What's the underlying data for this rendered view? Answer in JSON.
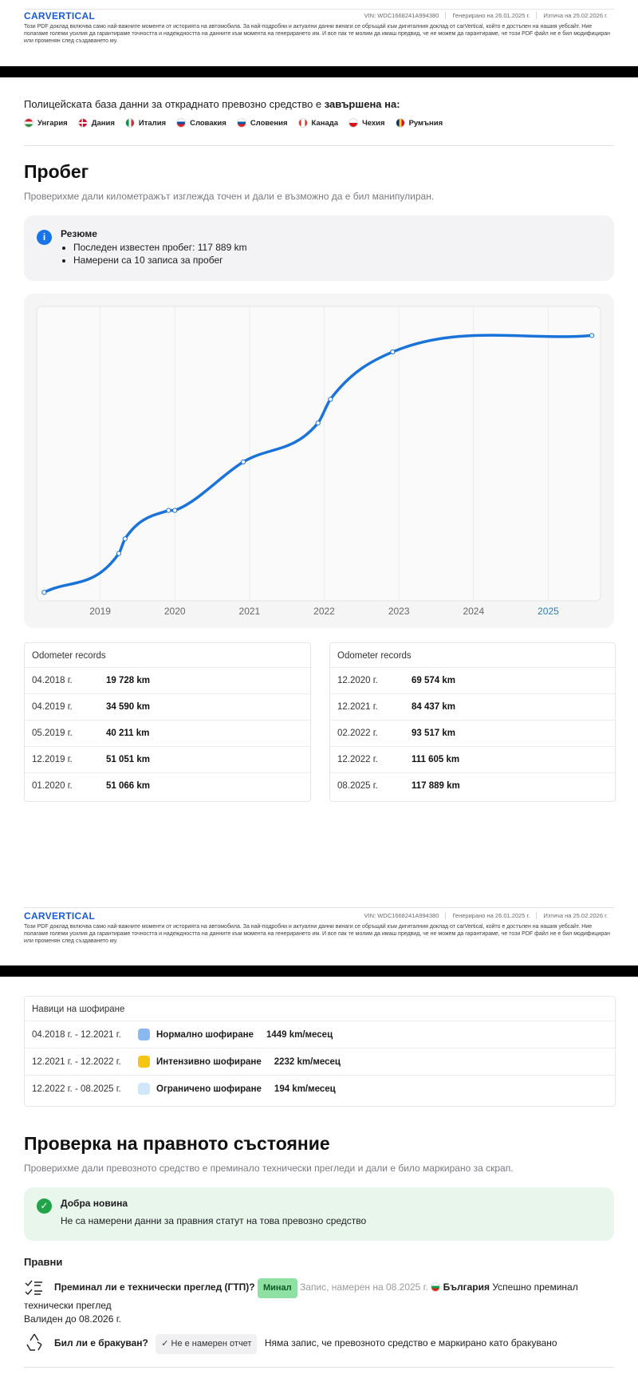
{
  "footer": {
    "logo": "CARVERTICAL",
    "vin": "VIN: WDC1668241A994380",
    "generated": "Генерирано на 26.01.2025 г.",
    "expires": "Изтича на 25.02.2026 г.",
    "disclaimer": "Този PDF доклад включва само най-важните моменти от историята на автомобила. За най-подробни и актуални данни винаги се обръщай към дигиталния доклад от carVertical, който е достъпен на нашия уебсайт. Ние полагаме големи усилия да гарантираме точността и надеждността на данните към момента на генерирането им. И все пак те молим да имаш предвид, че не можем да гарантираме, че този PDF файл не е бил модифициран или променян след създаването му."
  },
  "police": {
    "text": "Полицейската база данни за откраднато превозно средство е ",
    "text_bold": "завършена на:",
    "countries": [
      "Унгария",
      "Дания",
      "Италия",
      "Словакия",
      "Словения",
      "Канада",
      "Чехия",
      "Румъния"
    ]
  },
  "mileage": {
    "title": "Пробег",
    "subtitle": "Проверихме дали километражът изглежда точен и дали е възможно да е бил манипулиран.",
    "summary_title": "Резюме",
    "summary_items": [
      "Последен известен пробег: 117 889 km",
      "Намерени са 10 записа за пробег"
    ],
    "records_title": "Odometer records"
  },
  "chart_data": {
    "type": "line",
    "color": "#1a73d9",
    "x": [
      "04.2018 г.",
      "04.2019 г.",
      "05.2019 г.",
      "12.2019 г.",
      "01.2020 г.",
      "12.2020 г.",
      "12.2021 г.",
      "02.2022 г.",
      "12.2022 г.",
      "08.2025 г."
    ],
    "values": [
      19728,
      34590,
      40211,
      51051,
      51066,
      69574,
      84437,
      93517,
      111605,
      117889
    ],
    "value_labels": [
      "19 728 km",
      "34 590 km",
      "40 211 km",
      "51 051 km",
      "51 066 km",
      "69 574 km",
      "84 437 km",
      "93 517 km",
      "111 605 km",
      "117 889 km"
    ],
    "xlim": [
      2018.15,
      2025.7
    ],
    "xticks": [
      2019,
      2020,
      2021,
      2022,
      2023,
      2024,
      2025
    ],
    "ylim": [
      16500,
      129000
    ],
    "grid": true
  },
  "driving": {
    "title": "Навици на шофиране",
    "rows": [
      {
        "period": "04.2018 г. - 12.2021 г.",
        "color": "#8ab9f1",
        "label": "Нормално шофиране",
        "rate": "1449 km/месец"
      },
      {
        "period": "12.2021 г. - 12.2022 г.",
        "color": "#f6c514",
        "label": "Интензивно шофиране",
        "rate": "2232 km/месец"
      },
      {
        "period": "12.2022 г. - 08.2025 г.",
        "color": "#cfe6fb",
        "label": "Ограничено шофиране",
        "rate": "194 km/месец"
      }
    ]
  },
  "legal": {
    "title": "Проверка на правното състояние",
    "subtitle": "Проверихме дали превозното средство е преминало технически прегледи и дали е било маркирано за скрап.",
    "notice_title": "Добра новина",
    "notice_text": "Не са намерени данни за правния статут на това превозно средство",
    "section": "Правни",
    "items": [
      {
        "question": "Преминал ли е технически преглед (ГТП)?",
        "badge": "Минал",
        "record": "Запис, намерен на 08.2025 г.",
        "country": "България",
        "result": "Успешно преминал технически преглед",
        "valid": "Валиден до 08.2026 г."
      },
      {
        "question": "Бил ли е бракуван?",
        "badge": "Не е намерен отчет",
        "result": "Няма запис, че превозното средство е маркирано като бракувано"
      }
    ]
  }
}
